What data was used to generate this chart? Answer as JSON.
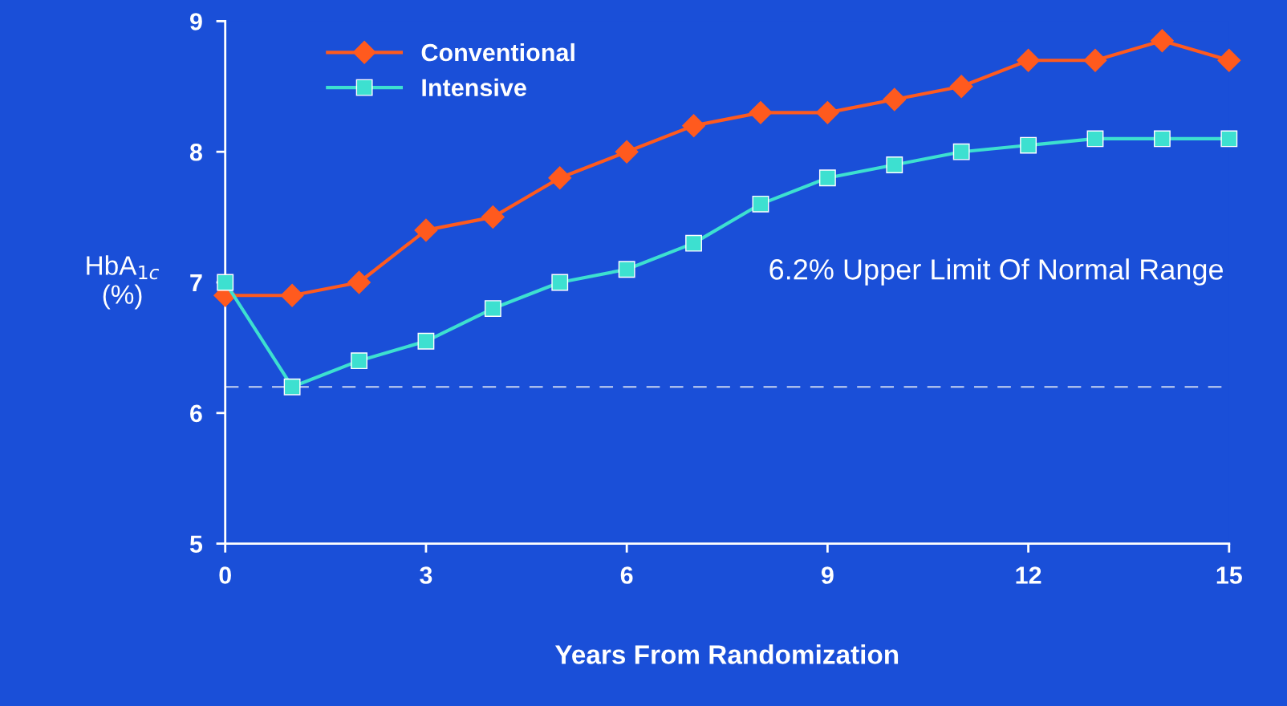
{
  "chart_data": {
    "type": "line",
    "xlabel": "Years From Randomization",
    "ylabel": "HbA$_{1c}$\n(%)",
    "x": [
      0,
      1,
      2,
      3,
      4,
      5,
      6,
      7,
      8,
      9,
      10,
      11,
      12,
      13,
      14,
      15
    ],
    "series": [
      {
        "name": "Conventional",
        "color": "#ff5a1e",
        "marker": "diamond",
        "values": [
          6.9,
          6.9,
          7.0,
          7.4,
          7.5,
          7.8,
          8.0,
          8.2,
          8.3,
          8.3,
          8.4,
          8.5,
          8.7,
          8.7,
          8.85,
          8.7
        ]
      },
      {
        "name": "Intensive",
        "color": "#3de0d0",
        "marker": "square",
        "values": [
          7.0,
          6.2,
          6.4,
          6.55,
          6.8,
          7.0,
          7.1,
          7.3,
          7.6,
          7.8,
          7.9,
          8.0,
          8.05,
          8.1,
          8.1,
          8.1
        ]
      }
    ],
    "xlim": [
      0,
      15
    ],
    "xticks": [
      0,
      3,
      6,
      9,
      12,
      15
    ],
    "ylim": [
      5,
      9
    ],
    "yticks": [
      5,
      6,
      7,
      8,
      9
    ],
    "ref_lines": [
      {
        "axis": "y",
        "value": 6.2,
        "color": "#c8d4f0",
        "line_style": "dashed"
      }
    ],
    "annotations": [
      "6.2% Upper Limit Of Normal Range"
    ],
    "legend": "top left",
    "grid": false,
    "line_style": "solid"
  }
}
